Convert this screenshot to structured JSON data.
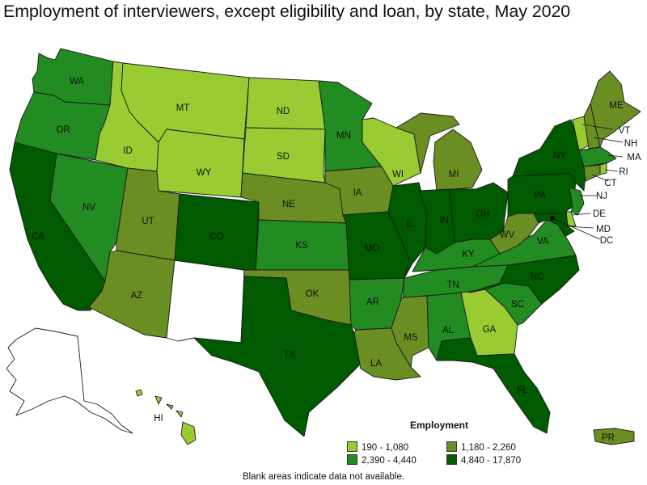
{
  "title": "Employment of interviewers, except eligibility and loan, by state, May 2020",
  "legend": {
    "title": "Employment",
    "classes": [
      {
        "label": "190 - 1,080",
        "color": "#99cc33"
      },
      {
        "label": "1,180 - 2,260",
        "color": "#6b8e23"
      },
      {
        "label": "2,390 - 4,440",
        "color": "#228b22"
      },
      {
        "label": "4,840 - 17,870",
        "color": "#005a00"
      }
    ]
  },
  "note": "Blank areas indicate data not available.",
  "state_labels": {
    "WA": "WA",
    "OR": "OR",
    "CA": "CA",
    "NV": "NV",
    "ID": "ID",
    "MT": "MT",
    "WY": "WY",
    "UT": "UT",
    "AZ": "AZ",
    "CO": "CO",
    "ND": "ND",
    "SD": "SD",
    "NE": "NE",
    "KS": "KS",
    "OK": "OK",
    "TX": "TX",
    "MN": "MN",
    "IA": "IA",
    "MO": "MO",
    "AR": "AR",
    "LA": "LA",
    "WI": "WI",
    "IL": "IL",
    "MI": "MI",
    "IN": "IN",
    "OH": "OH",
    "KY": "KY",
    "TN": "TN",
    "MS": "MS",
    "AL": "AL",
    "GA": "GA",
    "FL": "FL",
    "SC": "SC",
    "NC": "NC",
    "VA": "VA",
    "WV": "WV",
    "PA": "PA",
    "NY": "NY",
    "ME": "ME",
    "VT": "VT",
    "NH": "NH",
    "MA": "MA",
    "RI": "RI",
    "CT": "CT",
    "NJ": "NJ",
    "DE": "DE",
    "MD": "MD",
    "DC": "DC",
    "HI": "HI",
    "PR": "PR"
  }
}
